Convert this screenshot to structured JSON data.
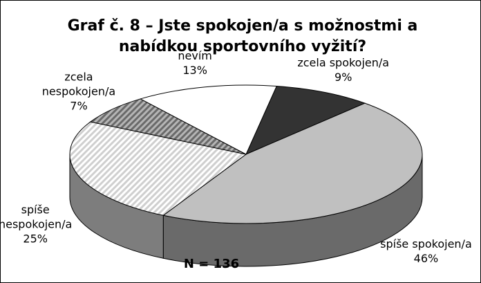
{
  "chart_data": {
    "type": "pie3d",
    "title": "Graf č. 8  – Jste spokojen/a s možnostmi a nabídkou sportovního vyžití?",
    "annotation": "N = 136",
    "categories": [
      "zcela spokojen/a",
      "spíše spokojen/a",
      "spíše nespokojen/a",
      "zcela nespokojen/a",
      "nevím"
    ],
    "values": [
      9,
      46,
      25,
      7,
      13
    ],
    "value_labels": [
      "9%",
      "46%",
      "25%",
      "7%",
      "13%"
    ],
    "colors": [
      "#333333",
      "#c0c0c0",
      "#e4e4e4",
      "#9a9a9a",
      "#ffffff"
    ],
    "hatched": [
      false,
      false,
      true,
      true,
      false
    ]
  }
}
